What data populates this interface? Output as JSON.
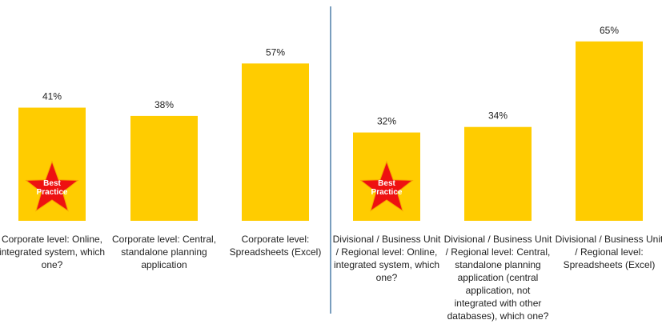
{
  "chart_data": {
    "type": "bar",
    "categories": [
      "Corporate level: Online, integrated system, which one?",
      "Corporate level: Central, standalone planning application",
      "Corporate level: Spreadsheets (Excel)",
      "Divisional / Business Unit / Regional level: Online, integrated system, which one?",
      "Divisional / Business Unit / Regional level: Central, standalone planning application (central application, not integrated with other databases), which one?",
      "Divisional / Business Unit / Regional level: Spreadsheets (Excel)"
    ],
    "values": [
      41,
      38,
      57,
      32,
      34,
      65
    ],
    "value_labels": [
      "41%",
      "38%",
      "57%",
      "32%",
      "34%",
      "65%"
    ],
    "color": "#ffcc00",
    "annotations": [
      "Best Practice",
      null,
      null,
      "Best Practice",
      null,
      null
    ]
  }
}
